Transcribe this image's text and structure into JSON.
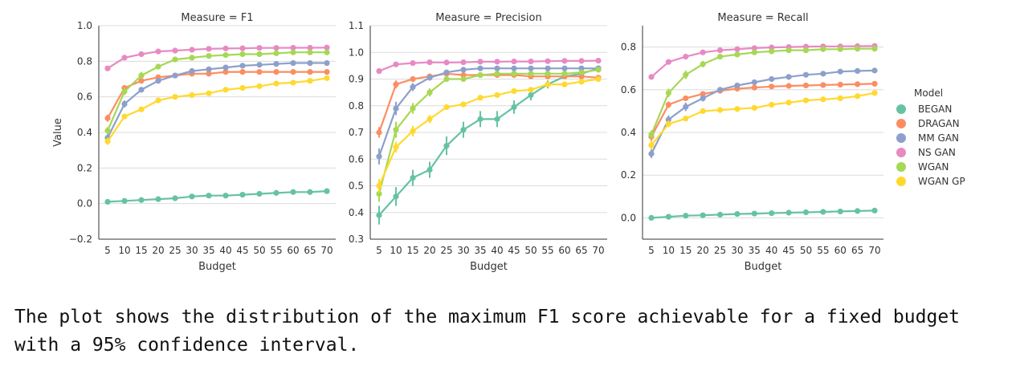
{
  "caption": "The plot shows the distribution of the maximum F1 score achievable for a fixed budget with a 95% confidence interval.",
  "legend": {
    "title": "Model",
    "placement": "right"
  },
  "colors": {
    "BEGAN": "#66c2a5",
    "DRAGAN": "#fc8d62",
    "MM GAN": "#8da0cb",
    "NS GAN": "#e78ac3",
    "WGAN": "#a6d854",
    "WGAN GP": "#ffd92f"
  },
  "chart_data": [
    {
      "type": "line",
      "title": "Measure = F1",
      "xlabel": "Budget",
      "ylabel": "Value",
      "x": [
        5,
        10,
        15,
        20,
        25,
        30,
        35,
        40,
        45,
        50,
        55,
        60,
        65,
        70
      ],
      "ylim": [
        -0.2,
        1.0
      ],
      "yticks": [
        -0.2,
        0.0,
        0.2,
        0.4,
        0.6,
        0.8,
        1.0
      ],
      "ytick_labels": [
        "−0.2",
        "0.0",
        "0.2",
        "0.4",
        "0.6",
        "0.8",
        "1.0"
      ],
      "grid": "horizontal",
      "series": [
        {
          "name": "BEGAN",
          "values": [
            0.01,
            0.015,
            0.02,
            0.025,
            0.03,
            0.04,
            0.045,
            0.045,
            0.05,
            0.055,
            0.06,
            0.065,
            0.065,
            0.07
          ],
          "err": [
            0.005,
            0.005,
            0.005,
            0.005,
            0.005,
            0.005,
            0.005,
            0.005,
            0.005,
            0.005,
            0.005,
            0.005,
            0.005,
            0.005
          ]
        },
        {
          "name": "DRAGAN",
          "values": [
            0.48,
            0.65,
            0.69,
            0.71,
            0.72,
            0.73,
            0.73,
            0.74,
            0.74,
            0.74,
            0.74,
            0.74,
            0.74,
            0.74
          ],
          "err": [
            0.02,
            0.015,
            0.01,
            0.005,
            0.005,
            0.005,
            0.005,
            0.005,
            0.005,
            0.005,
            0.005,
            0.005,
            0.005,
            0.005
          ]
        },
        {
          "name": "MM GAN",
          "values": [
            0.37,
            0.56,
            0.64,
            0.69,
            0.72,
            0.745,
            0.755,
            0.765,
            0.775,
            0.78,
            0.785,
            0.79,
            0.79,
            0.79
          ],
          "err": [
            0.02,
            0.02,
            0.015,
            0.01,
            0.008,
            0.006,
            0.005,
            0.005,
            0.005,
            0.005,
            0.005,
            0.005,
            0.005,
            0.005
          ]
        },
        {
          "name": "NS GAN",
          "values": [
            0.76,
            0.82,
            0.84,
            0.855,
            0.86,
            0.865,
            0.87,
            0.872,
            0.873,
            0.875,
            0.875,
            0.876,
            0.876,
            0.877
          ],
          "err": [
            0.01,
            0.008,
            0.006,
            0.005,
            0.005,
            0.005,
            0.005,
            0.005,
            0.005,
            0.005,
            0.005,
            0.005,
            0.005,
            0.005
          ]
        },
        {
          "name": "WGAN",
          "values": [
            0.41,
            0.63,
            0.72,
            0.77,
            0.81,
            0.82,
            0.83,
            0.835,
            0.84,
            0.84,
            0.845,
            0.85,
            0.85,
            0.85
          ],
          "err": [
            0.02,
            0.02,
            0.02,
            0.015,
            0.01,
            0.008,
            0.006,
            0.005,
            0.005,
            0.005,
            0.005,
            0.005,
            0.005,
            0.005
          ]
        },
        {
          "name": "WGAN GP",
          "values": [
            0.35,
            0.49,
            0.53,
            0.58,
            0.6,
            0.61,
            0.62,
            0.64,
            0.65,
            0.66,
            0.675,
            0.68,
            0.69,
            0.705
          ],
          "err": [
            0.02,
            0.015,
            0.012,
            0.01,
            0.008,
            0.006,
            0.005,
            0.005,
            0.005,
            0.005,
            0.005,
            0.005,
            0.005,
            0.005
          ]
        }
      ]
    },
    {
      "type": "line",
      "title": "Measure = Precision",
      "xlabel": "Budget",
      "ylabel": "",
      "x": [
        5,
        10,
        15,
        20,
        25,
        30,
        35,
        40,
        45,
        50,
        55,
        60,
        65,
        70
      ],
      "ylim": [
        0.3,
        1.1
      ],
      "yticks": [
        0.3,
        0.4,
        0.5,
        0.6,
        0.7,
        0.8,
        0.9,
        1.0,
        1.1
      ],
      "ytick_labels": [
        "0.3",
        "0.4",
        "0.5",
        "0.6",
        "0.7",
        "0.8",
        "0.9",
        "1.0",
        "1.1"
      ],
      "grid": "horizontal",
      "series": [
        {
          "name": "BEGAN",
          "values": [
            0.39,
            0.46,
            0.53,
            0.56,
            0.65,
            0.71,
            0.75,
            0.75,
            0.795,
            0.84,
            0.88,
            0.91,
            0.92,
            0.94
          ],
          "err": [
            0.035,
            0.035,
            0.03,
            0.03,
            0.035,
            0.03,
            0.03,
            0.03,
            0.025,
            0.02,
            0.015,
            0.01,
            0.01,
            0.01
          ]
        },
        {
          "name": "DRAGAN",
          "values": [
            0.7,
            0.88,
            0.9,
            0.91,
            0.92,
            0.915,
            0.915,
            0.915,
            0.915,
            0.91,
            0.91,
            0.91,
            0.91,
            0.905
          ],
          "err": [
            0.02,
            0.015,
            0.01,
            0.008,
            0.006,
            0.005,
            0.005,
            0.005,
            0.005,
            0.005,
            0.005,
            0.005,
            0.005,
            0.005
          ]
        },
        {
          "name": "MM GAN",
          "values": [
            0.61,
            0.79,
            0.87,
            0.905,
            0.925,
            0.935,
            0.94,
            0.94,
            0.94,
            0.94,
            0.94,
            0.94,
            0.94,
            0.94
          ],
          "err": [
            0.03,
            0.025,
            0.015,
            0.01,
            0.008,
            0.006,
            0.005,
            0.005,
            0.005,
            0.005,
            0.005,
            0.005,
            0.005,
            0.005
          ]
        },
        {
          "name": "NS GAN",
          "values": [
            0.93,
            0.955,
            0.96,
            0.963,
            0.962,
            0.963,
            0.965,
            0.965,
            0.966,
            0.966,
            0.967,
            0.968,
            0.968,
            0.969
          ],
          "err": [
            0.008,
            0.006,
            0.005,
            0.005,
            0.005,
            0.005,
            0.005,
            0.005,
            0.005,
            0.005,
            0.005,
            0.005,
            0.005,
            0.005
          ]
        },
        {
          "name": "WGAN",
          "values": [
            0.47,
            0.71,
            0.79,
            0.85,
            0.9,
            0.9,
            0.915,
            0.92,
            0.92,
            0.92,
            0.92,
            0.92,
            0.925,
            0.935
          ],
          "err": [
            0.03,
            0.03,
            0.02,
            0.015,
            0.01,
            0.008,
            0.006,
            0.005,
            0.005,
            0.005,
            0.005,
            0.005,
            0.005,
            0.005
          ]
        },
        {
          "name": "WGAN GP",
          "values": [
            0.5,
            0.645,
            0.705,
            0.75,
            0.795,
            0.805,
            0.83,
            0.84,
            0.855,
            0.86,
            0.88,
            0.88,
            0.89,
            0.9
          ],
          "err": [
            0.025,
            0.02,
            0.02,
            0.015,
            0.01,
            0.01,
            0.008,
            0.006,
            0.006,
            0.005,
            0.005,
            0.005,
            0.005,
            0.005
          ]
        }
      ]
    },
    {
      "type": "line",
      "title": "Measure = Recall",
      "xlabel": "Budget",
      "ylabel": "",
      "x": [
        5,
        10,
        15,
        20,
        25,
        30,
        35,
        40,
        45,
        50,
        55,
        60,
        65,
        70
      ],
      "ylim": [
        -0.1,
        0.9
      ],
      "yticks": [
        0.0,
        0.2,
        0.4,
        0.6,
        0.8
      ],
      "ytick_labels": [
        "0.0",
        "0.2",
        "0.4",
        "0.6",
        "0.8"
      ],
      "grid": "horizontal",
      "series": [
        {
          "name": "BEGAN",
          "values": [
            0.0,
            0.005,
            0.01,
            0.012,
            0.015,
            0.018,
            0.02,
            0.022,
            0.024,
            0.026,
            0.028,
            0.03,
            0.032,
            0.034
          ],
          "err": [
            0.004,
            0.004,
            0.004,
            0.004,
            0.004,
            0.004,
            0.004,
            0.004,
            0.004,
            0.004,
            0.004,
            0.004,
            0.004,
            0.004
          ]
        },
        {
          "name": "DRAGAN",
          "values": [
            0.38,
            0.53,
            0.56,
            0.58,
            0.595,
            0.605,
            0.61,
            0.615,
            0.618,
            0.62,
            0.622,
            0.624,
            0.626,
            0.628
          ],
          "err": [
            0.02,
            0.015,
            0.01,
            0.008,
            0.006,
            0.005,
            0.005,
            0.005,
            0.005,
            0.005,
            0.005,
            0.005,
            0.005,
            0.005
          ]
        },
        {
          "name": "MM GAN",
          "values": [
            0.3,
            0.46,
            0.52,
            0.56,
            0.6,
            0.62,
            0.635,
            0.65,
            0.66,
            0.67,
            0.675,
            0.685,
            0.688,
            0.69
          ],
          "err": [
            0.02,
            0.02,
            0.02,
            0.015,
            0.01,
            0.008,
            0.006,
            0.005,
            0.005,
            0.005,
            0.005,
            0.005,
            0.005,
            0.005
          ]
        },
        {
          "name": "NS GAN",
          "values": [
            0.66,
            0.73,
            0.755,
            0.775,
            0.785,
            0.79,
            0.795,
            0.798,
            0.8,
            0.802,
            0.803,
            0.803,
            0.804,
            0.805
          ],
          "err": [
            0.01,
            0.008,
            0.006,
            0.005,
            0.005,
            0.005,
            0.005,
            0.005,
            0.005,
            0.005,
            0.005,
            0.005,
            0.005,
            0.005
          ]
        },
        {
          "name": "WGAN",
          "values": [
            0.39,
            0.585,
            0.67,
            0.72,
            0.755,
            0.765,
            0.775,
            0.78,
            0.785,
            0.785,
            0.79,
            0.79,
            0.792,
            0.792
          ],
          "err": [
            0.02,
            0.02,
            0.02,
            0.015,
            0.01,
            0.008,
            0.006,
            0.005,
            0.005,
            0.005,
            0.005,
            0.005,
            0.005,
            0.005
          ]
        },
        {
          "name": "WGAN GP",
          "values": [
            0.34,
            0.44,
            0.465,
            0.5,
            0.505,
            0.51,
            0.515,
            0.53,
            0.54,
            0.55,
            0.555,
            0.56,
            0.57,
            0.585
          ],
          "err": [
            0.02,
            0.015,
            0.01,
            0.008,
            0.006,
            0.005,
            0.005,
            0.005,
            0.005,
            0.005,
            0.005,
            0.005,
            0.005,
            0.005
          ]
        }
      ]
    }
  ]
}
